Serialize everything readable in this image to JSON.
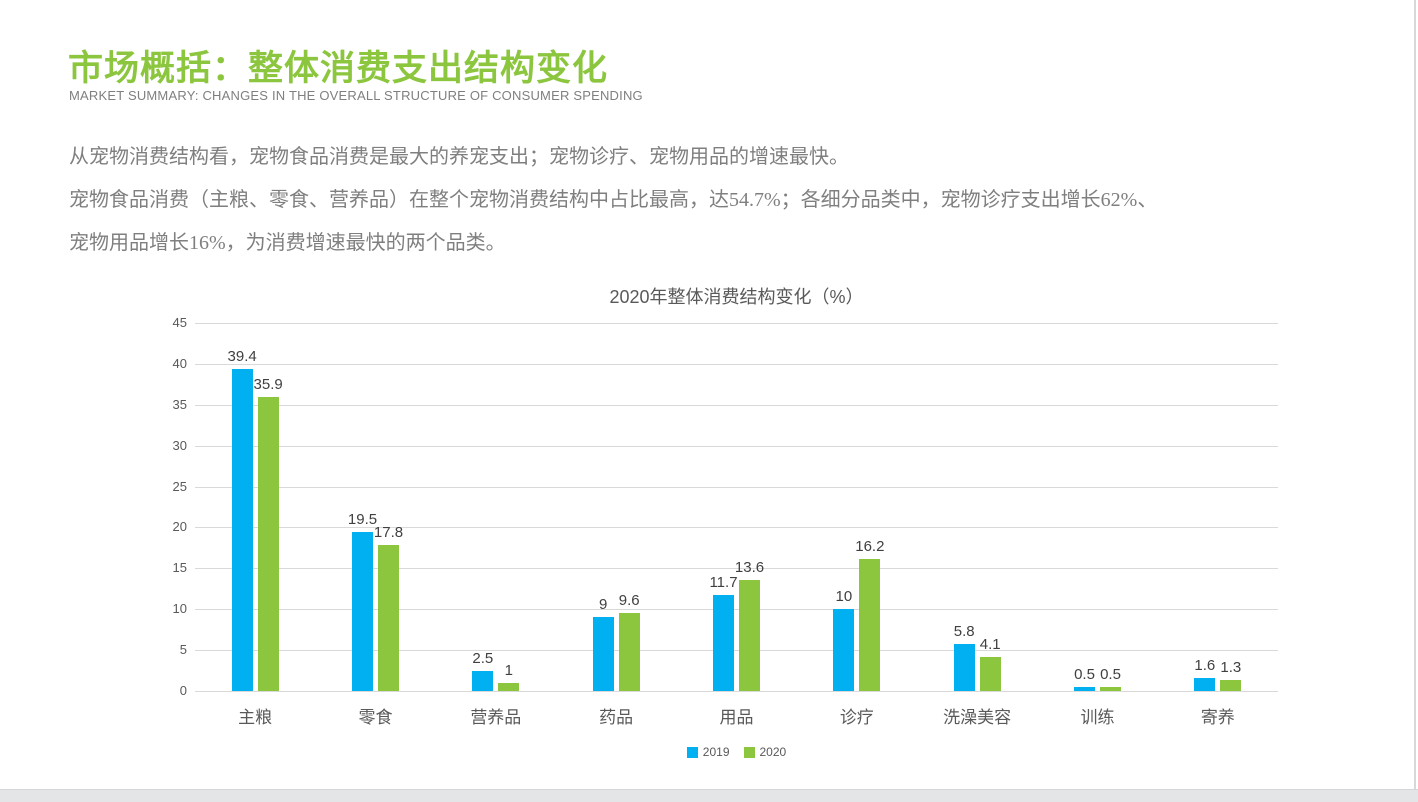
{
  "page": {
    "title": "市场概括：整体消费支出结构变化",
    "subtitle": "MARKET SUMMARY: CHANGES IN THE OVERALL STRUCTURE OF CONSUMER SPENDING",
    "paragraphs": [
      "从宠物消费结构看，宠物食品消费是最大的养宠支出；宠物诊疗、宠物用品的增速最快。",
      "宠物食品消费（主粮、零食、营养品）在整个宠物消费结构中占比最高，达54.7%；各细分品类中，宠物诊疗支出增长62%、",
      "宠物用品增长16%，为消费增速最快的两个品类。"
    ]
  },
  "colors": {
    "title_green": "#8cc63f",
    "series_2019_blue": "#00b0f0",
    "series_2020_green": "#8cc63f",
    "body_gray": "#7f7f7f",
    "axis_gray": "#595959",
    "gridline_gray": "#d9d9d9",
    "data_label_gray": "#404040"
  },
  "chart_data": {
    "type": "bar",
    "title": "2020年整体消费结构变化（%）",
    "categories": [
      "主粮",
      "零食",
      "营养品",
      "药品",
      "用品",
      "诊疗",
      "洗澡美容",
      "训练",
      "寄养"
    ],
    "series": [
      {
        "name": "2019",
        "color": "#00b0f0",
        "values": [
          39.4,
          19.5,
          2.5,
          9,
          11.7,
          10,
          5.8,
          0.5,
          1.6
        ]
      },
      {
        "name": "2020",
        "color": "#8cc63f",
        "values": [
          35.9,
          17.8,
          1,
          9.6,
          13.6,
          16.2,
          4.1,
          0.5,
          1.3
        ]
      }
    ],
    "xlabel": "",
    "ylabel": "",
    "ylim": [
      0,
      45
    ],
    "ytick_step": 5,
    "grid": true,
    "legend_position": "bottom",
    "data_labels": true
  }
}
